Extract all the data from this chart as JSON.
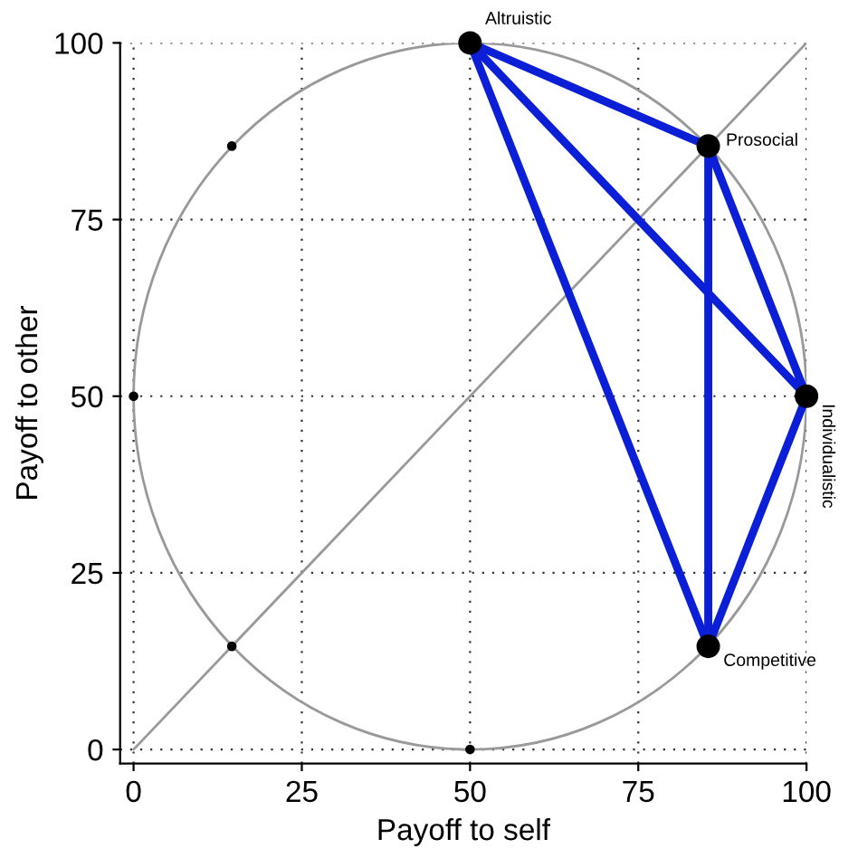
{
  "chart_data": {
    "type": "line",
    "xlabel": "Payoff to self",
    "ylabel": "Payoff to other",
    "xlim": [
      -2,
      100
    ],
    "ylim": [
      -2,
      100
    ],
    "xticks": [
      0,
      25,
      50,
      75,
      100
    ],
    "yticks": [
      0,
      25,
      50,
      75,
      100
    ],
    "grid": true,
    "series": [
      {
        "color": "#999999",
        "x": [
          0,
          100
        ],
        "values": [
          0,
          100
        ]
      },
      {
        "color": "#0a1fd6",
        "x": [
          50,
          85.4
        ],
        "values": [
          100,
          85.4
        ]
      },
      {
        "color": "#0a1fd6",
        "x": [
          50,
          100
        ],
        "values": [
          100,
          50
        ]
      },
      {
        "color": "#0a1fd6",
        "x": [
          50,
          85.4
        ],
        "values": [
          100,
          14.6
        ]
      },
      {
        "color": "#0a1fd6",
        "x": [
          85.4,
          100
        ],
        "values": [
          85.4,
          50
        ]
      },
      {
        "color": "#0a1fd6",
        "x": [
          85.4,
          85.4
        ],
        "values": [
          85.4,
          14.6
        ]
      },
      {
        "color": "#0a1fd6",
        "x": [
          100,
          85.4
        ],
        "values": [
          50,
          14.6
        ]
      },
      {
        "type": "scatter",
        "color": "#000000",
        "x": [
          14.6,
          0,
          14.6,
          50
        ],
        "values": [
          85.4,
          50,
          14.6,
          0
        ]
      },
      {
        "type": "scatter",
        "color": "#000000",
        "x": [
          50,
          85.4,
          100,
          85.4
        ],
        "values": [
          100,
          85.4,
          50,
          14.6
        ]
      }
    ],
    "annotations": [
      {
        "text": "Altruistic",
        "x": 50,
        "y": 100
      },
      {
        "text": "Prosocial",
        "x": 85.4,
        "y": 85.4
      },
      {
        "text": "Individualistic",
        "x": 100,
        "y": 50
      },
      {
        "text": "Competitive",
        "x": 85.4,
        "y": 14.6
      }
    ]
  }
}
